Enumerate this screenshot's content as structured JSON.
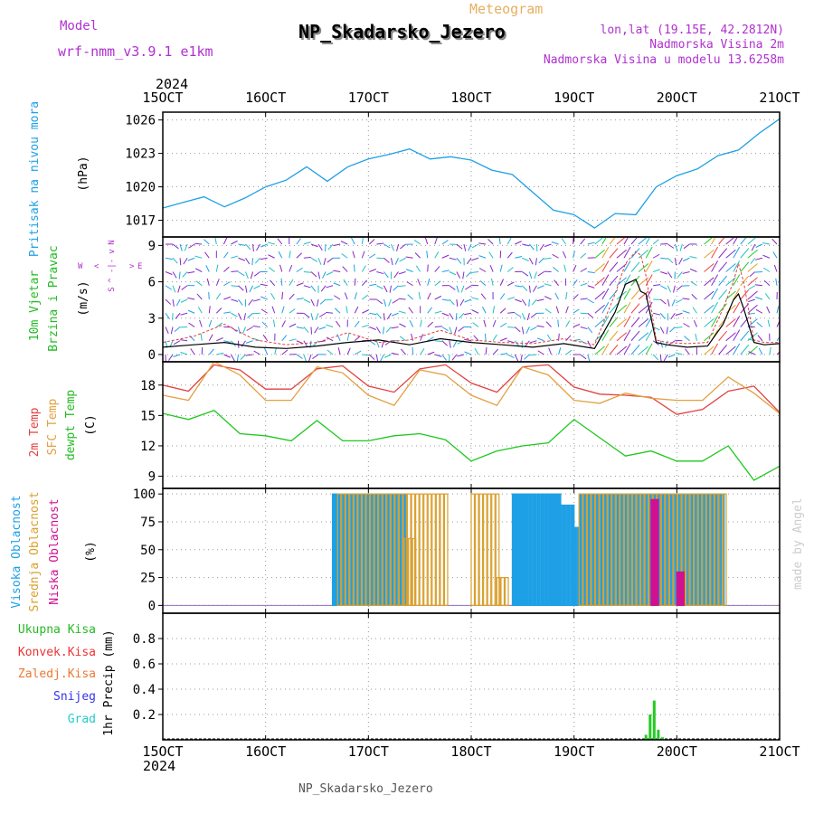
{
  "header": {
    "model_label": "Model",
    "model_name": "wrf-nmm_v3.9.1 e1km",
    "meteogram_label": "Meteogram",
    "station": "NP_Skadarsko_Jezero",
    "lonlat": "lon,lat (19.15E, 42.2812N)",
    "altitude": "Nadmorska Visina 2m",
    "model_altitude": "Nadmorska Visina u modelu 13.6258m"
  },
  "footer": {
    "station": "NP_Skadarsko_Jezero",
    "credit": "made by Angel"
  },
  "time_axis": {
    "year": "2024",
    "labels": [
      "15OCT",
      "16OCT",
      "17OCT",
      "18OCT",
      "19OCT",
      "20OCT",
      "21OCT"
    ],
    "day_start": 15,
    "day_end": 21
  },
  "wind_key": {
    "n": "N",
    "s": "S",
    "w": "W",
    "e": "E",
    "arrow_w": "<",
    "arrow_e": ">",
    "arrow_n": "^",
    "arrow_s": "v"
  },
  "colors": {
    "pressure": "#1ea0e6",
    "wind_speed": "#000000",
    "wind_gust": "#e34040",
    "temp_2m": "#e34040",
    "temp_sfc": "#e3a040",
    "dewpoint": "#1ec81e",
    "cloud_high": "#1ea0e6",
    "cloud_mid": "#d9a030",
    "cloud_low": "#d01090",
    "precip_total": "#22cc22",
    "precip_conv": "#ee3333",
    "precip_frozen": "#ee7733",
    "precip_snow": "#3333ee",
    "precip_hail": "#22cccc",
    "model_text": "#b030d0",
    "meteogram_text": "#e6b060"
  },
  "chart_data": [
    {
      "type": "line",
      "panel": "pressure",
      "ylabel_left": "Pritisak na nivou mora",
      "ylabel_unit": "(hPa)",
      "ylim": [
        1015.5,
        1026.7
      ],
      "yticks": [
        1017,
        1020,
        1023,
        1026
      ],
      "grid": true,
      "x": [
        15.0,
        15.2,
        15.4,
        15.6,
        15.8,
        16.0,
        16.2,
        16.4,
        16.6,
        16.8,
        17.0,
        17.2,
        17.4,
        17.6,
        17.8,
        18.0,
        18.2,
        18.4,
        18.6,
        18.8,
        19.0,
        19.2,
        19.4,
        19.6,
        19.8,
        20.0,
        20.2,
        20.4,
        20.6,
        20.8,
        21.0
      ],
      "series": [
        {
          "name": "Pritisak na nivou mora",
          "values": [
            1018.1,
            1018.6,
            1019.1,
            1018.2,
            1019.0,
            1020.0,
            1020.6,
            1021.8,
            1020.5,
            1021.8,
            1022.5,
            1022.9,
            1023.4,
            1022.5,
            1022.7,
            1022.4,
            1021.5,
            1021.1,
            1019.5,
            1017.9,
            1017.5,
            1016.3,
            1017.6,
            1017.5,
            1020.0,
            1021.0,
            1021.6,
            1022.8,
            1023.3,
            1024.8,
            1026.1
          ]
        }
      ]
    },
    {
      "type": "line",
      "panel": "wind",
      "ylabel_left": "10m Vjetar",
      "ylabel_left2": "Brzina i Pravac",
      "ylabel_unit": "(m/s)",
      "ylim": [
        -0.6,
        9.7
      ],
      "yticks": [
        0,
        3,
        6,
        9
      ],
      "grid": true,
      "x": [
        15.0,
        15.3,
        15.6,
        15.9,
        16.2,
        16.5,
        16.8,
        17.1,
        17.4,
        17.7,
        18.0,
        18.3,
        18.6,
        18.9,
        19.2,
        19.4,
        19.5,
        19.6,
        19.65,
        19.7,
        19.8,
        19.9,
        20.1,
        20.3,
        20.45,
        20.55,
        20.6,
        20.65,
        20.75,
        20.85,
        21.0
      ],
      "series": [
        {
          "name": "speed",
          "values": [
            0.6,
            0.8,
            1.0,
            0.6,
            0.5,
            0.7,
            1.0,
            1.2,
            0.8,
            1.3,
            1.0,
            0.8,
            0.6,
            0.9,
            0.5,
            3.5,
            5.8,
            6.2,
            5.2,
            5.0,
            1.0,
            0.8,
            0.6,
            0.7,
            2.5,
            4.5,
            5.0,
            3.8,
            1.0,
            0.8,
            0.9
          ]
        },
        {
          "name": "gust",
          "values": [
            1.0,
            1.5,
            2.5,
            1.2,
            0.8,
            1.0,
            1.8,
            1.0,
            1.2,
            2.0,
            1.2,
            1.0,
            0.9,
            1.3,
            0.8,
            5.0,
            7.5,
            8.5,
            8.2,
            6.5,
            1.2,
            1.0,
            0.9,
            1.0,
            3.8,
            6.0,
            7.5,
            6.0,
            1.2,
            1.0,
            1.0
          ]
        }
      ]
    },
    {
      "type": "line",
      "panel": "temperature",
      "ylabel_left": "2m Temp",
      "ylabel_left2": "SFC Temp",
      "ylabel_left3": "dewpt Temp",
      "ylabel_unit": "(C)",
      "ylim": [
        7.8,
        20.3
      ],
      "yticks": [
        9,
        12,
        15,
        18
      ],
      "grid": true,
      "x": [
        15.0,
        15.25,
        15.5,
        15.75,
        16.0,
        16.25,
        16.5,
        16.75,
        17.0,
        17.25,
        17.5,
        17.75,
        18.0,
        18.25,
        18.5,
        18.75,
        19.0,
        19.25,
        19.5,
        19.75,
        20.0,
        20.25,
        20.5,
        20.75,
        21.0
      ],
      "series": [
        {
          "name": "2m Temp",
          "values": [
            18.0,
            17.4,
            20.0,
            19.5,
            17.6,
            17.6,
            19.6,
            19.9,
            17.9,
            17.3,
            19.6,
            20.0,
            18.2,
            17.3,
            19.8,
            20.0,
            17.8,
            17.1,
            17.0,
            16.8,
            15.1,
            15.6,
            17.4,
            17.9,
            15.3
          ]
        },
        {
          "name": "SFC Temp",
          "values": [
            17.0,
            16.5,
            20.3,
            19.0,
            16.5,
            16.5,
            19.8,
            19.2,
            17.0,
            16.0,
            19.5,
            19.0,
            17.0,
            16.0,
            19.8,
            19.0,
            16.5,
            16.2,
            17.2,
            16.7,
            16.5,
            16.5,
            18.8,
            17.2,
            15.2
          ]
        },
        {
          "name": "dewpt Temp",
          "values": [
            15.2,
            14.6,
            15.5,
            13.2,
            13.0,
            12.5,
            14.5,
            12.5,
            12.5,
            13.0,
            13.2,
            12.6,
            10.5,
            11.5,
            12.0,
            12.3,
            14.6,
            12.8,
            11.0,
            11.5,
            10.5,
            10.5,
            12.0,
            8.6,
            10.0
          ]
        }
      ]
    },
    {
      "type": "bar",
      "panel": "cloud",
      "ylabel_left": "Visoka Oblacnost",
      "ylabel_left2": "Srednja Oblacnost",
      "ylabel_left3": "Niska Oblacnost",
      "ylabel_unit": "(%)",
      "ylim": [
        -7,
        105
      ],
      "yticks": [
        0,
        25,
        50,
        75,
        100
      ],
      "yticklabels": [
        "0",
        "25",
        "50",
        "75",
        "100"
      ],
      "grid": true,
      "series": [
        {
          "name": "Visoka Oblacnost",
          "segments": [
            [
              16.65,
              17.35,
              100
            ],
            [
              18.4,
              18.85,
              100
            ],
            [
              18.85,
              19.0,
              90
            ],
            [
              19.0,
              19.05,
              70
            ],
            [
              19.05,
              19.35,
              100
            ],
            [
              19.35,
              20.45,
              100
            ]
          ]
        },
        {
          "name": "Srednja Oblacnost",
          "segments": [
            [
              16.7,
              17.75,
              100
            ],
            [
              17.35,
              17.45,
              60
            ],
            [
              18.0,
              18.25,
              100
            ],
            [
              18.25,
              18.35,
              25
            ],
            [
              19.05,
              20.45,
              100
            ]
          ]
        },
        {
          "name": "Niska Oblacnost",
          "segments": [
            [
              19.75,
              19.8,
              95
            ],
            [
              20.0,
              20.05,
              30
            ]
          ]
        }
      ]
    },
    {
      "type": "bar",
      "panel": "precip",
      "ylabel_left": "Ukupna Kisa",
      "ylabel_left2": "Konvek.Kisa",
      "ylabel_left3": "Zaledj.Kisa",
      "ylabel_left4": "Snijeg",
      "ylabel_left5": "Grad",
      "ylabel_unit": "1hr Precip (mm)",
      "ylim": [
        0,
        1.0
      ],
      "yticks": [
        0.2,
        0.4,
        0.6,
        0.8
      ],
      "yticklabels": [
        "0.2",
        "0.4",
        "0.6",
        "0.8"
      ],
      "grid": true,
      "x": [
        19.7,
        19.74,
        19.78,
        19.82,
        19.86
      ],
      "series": [
        {
          "name": "Ukupna Kisa",
          "values": [
            0.04,
            0.2,
            0.31,
            0.08,
            0.02
          ]
        }
      ]
    }
  ]
}
